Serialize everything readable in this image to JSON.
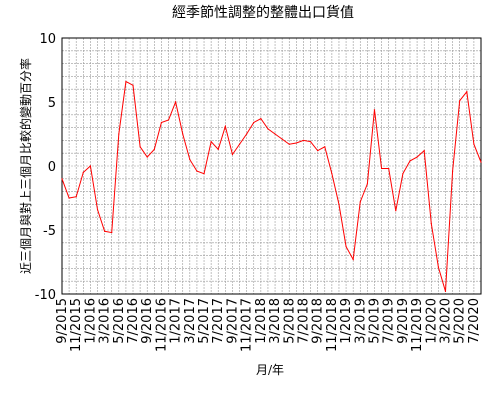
{
  "chart_data": {
    "type": "line",
    "title": "經季節性調整的整體出口貨值",
    "xlabel": "月/年",
    "ylabel": "近三個月與對上三個月比較的變動百分率",
    "ylim": [
      -10,
      10
    ],
    "yticks": [
      10,
      5,
      0,
      -5,
      -10
    ],
    "grid": true,
    "x_tick_labels": [
      "9/2015",
      "11/2015",
      "1/2016",
      "3/2016",
      "5/2016",
      "7/2016",
      "9/2016",
      "11/2016",
      "1/2017",
      "3/2017",
      "5/2017",
      "7/2017",
      "9/2017",
      "11/2017",
      "1/2018",
      "3/2018",
      "5/2018",
      "7/2018",
      "9/2018",
      "11/2018",
      "1/2019",
      "3/2019",
      "5/2019",
      "7/2019",
      "9/2019",
      "11/2019",
      "1/2020",
      "3/2020",
      "5/2020",
      "7/2020"
    ],
    "series": [
      {
        "color": "#ff0000",
        "x": [
          "9/2015",
          "10/2015",
          "11/2015",
          "12/2015",
          "1/2016",
          "2/2016",
          "3/2016",
          "4/2016",
          "5/2016",
          "6/2016",
          "7/2016",
          "8/2016",
          "9/2016",
          "10/2016",
          "11/2016",
          "12/2016",
          "1/2017",
          "2/2017",
          "3/2017",
          "4/2017",
          "5/2017",
          "6/2017",
          "7/2017",
          "8/2017",
          "9/2017",
          "10/2017",
          "11/2017",
          "12/2017",
          "1/2018",
          "2/2018",
          "3/2018",
          "4/2018",
          "5/2018",
          "6/2018",
          "7/2018",
          "8/2018",
          "9/2018",
          "10/2018",
          "11/2018",
          "12/2018",
          "1/2019",
          "2/2019",
          "3/2019",
          "4/2019",
          "5/2019",
          "6/2019",
          "7/2019",
          "8/2019",
          "9/2019",
          "10/2019",
          "11/2019",
          "12/2019",
          "1/2020",
          "2/2020",
          "3/2020",
          "4/2020",
          "5/2020",
          "6/2020",
          "7/2020",
          "8/2020"
        ],
        "values": [
          -1.0,
          -2.5,
          -2.4,
          -0.5,
          0.0,
          -3.4,
          -5.1,
          -5.2,
          2.5,
          6.6,
          6.3,
          1.5,
          0.7,
          1.3,
          3.4,
          3.6,
          5.0,
          2.5,
          0.5,
          -0.4,
          -0.6,
          1.9,
          1.3,
          3.1,
          0.9,
          1.7,
          2.5,
          3.4,
          3.7,
          2.9,
          2.5,
          2.1,
          1.7,
          1.8,
          2.0,
          1.9,
          1.2,
          1.5,
          -0.6,
          -3.0,
          -6.3,
          -7.3,
          -2.8,
          -1.4,
          4.4,
          -0.2,
          -0.2,
          -3.5,
          -0.6,
          0.4,
          0.7,
          1.2,
          -4.5,
          -7.9,
          -9.8,
          -0.4,
          5.1,
          5.8,
          1.7,
          0.3
        ]
      }
    ]
  }
}
